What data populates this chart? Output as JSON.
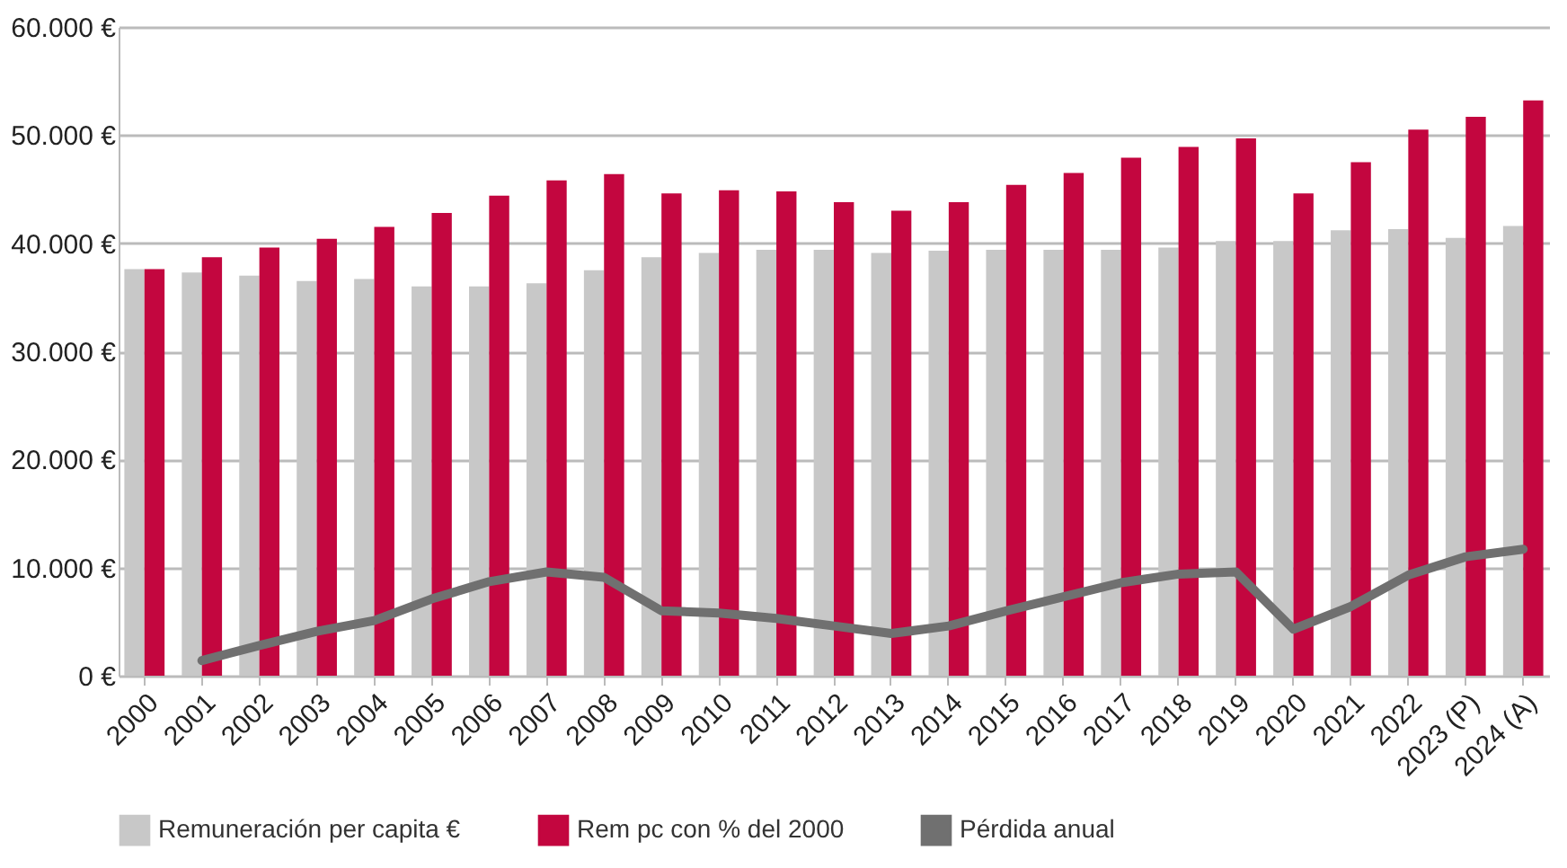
{
  "chart_data": {
    "type": "bar",
    "categories": [
      "2000",
      "2001",
      "2002",
      "2003",
      "2004",
      "2005",
      "2006",
      "2007",
      "2008",
      "2009",
      "2010",
      "2011",
      "2012",
      "2013",
      "2014",
      "2015",
      "2016",
      "2017",
      "2018",
      "2019",
      "2020",
      "2021",
      "2022",
      "2023 (P)",
      "2024 (A)"
    ],
    "series": [
      {
        "name": "Remuneración per capita €",
        "color": "#c8c8c8",
        "values": [
          37600,
          37300,
          37000,
          36500,
          36700,
          36000,
          36000,
          36300,
          37500,
          38700,
          39100,
          39400,
          39400,
          39100,
          39300,
          39400,
          39400,
          39400,
          39600,
          40200,
          40200,
          41200,
          41300,
          40500,
          41600
        ]
      },
      {
        "name": "Rem pc con % del 2000",
        "color": "#c3063f",
        "values": [
          37600,
          38700,
          39600,
          40400,
          41500,
          42800,
          44400,
          45800,
          46400,
          44600,
          44900,
          44800,
          43800,
          43000,
          43800,
          45400,
          46500,
          47900,
          48900,
          49700,
          44600,
          47500,
          50500,
          51700,
          53200
        ]
      },
      {
        "name": "Pérdida anual",
        "type": "line",
        "color": "#707070",
        "values": [
          null,
          1400,
          2800,
          4100,
          5100,
          7100,
          8700,
          9600,
          9100,
          6000,
          5800,
          5300,
          4600,
          3900,
          4600,
          6000,
          7300,
          8600,
          9400,
          9600,
          4300,
          6400,
          9300,
          11000,
          11700
        ]
      }
    ],
    "ylim": [
      0,
      60000
    ],
    "yticks": [
      {
        "value": 0,
        "label": "0 €"
      },
      {
        "value": 10000,
        "label": "10.000 €"
      },
      {
        "value": 20000,
        "label": "20.000 €"
      },
      {
        "value": 30000,
        "label": "30.000 €"
      },
      {
        "value": 40000,
        "label": "40.000 €"
      },
      {
        "value": 50000,
        "label": "50.000 €"
      },
      {
        "value": 60000,
        "label": "60.000 €"
      }
    ],
    "grid": "y",
    "legend": "bottom"
  }
}
